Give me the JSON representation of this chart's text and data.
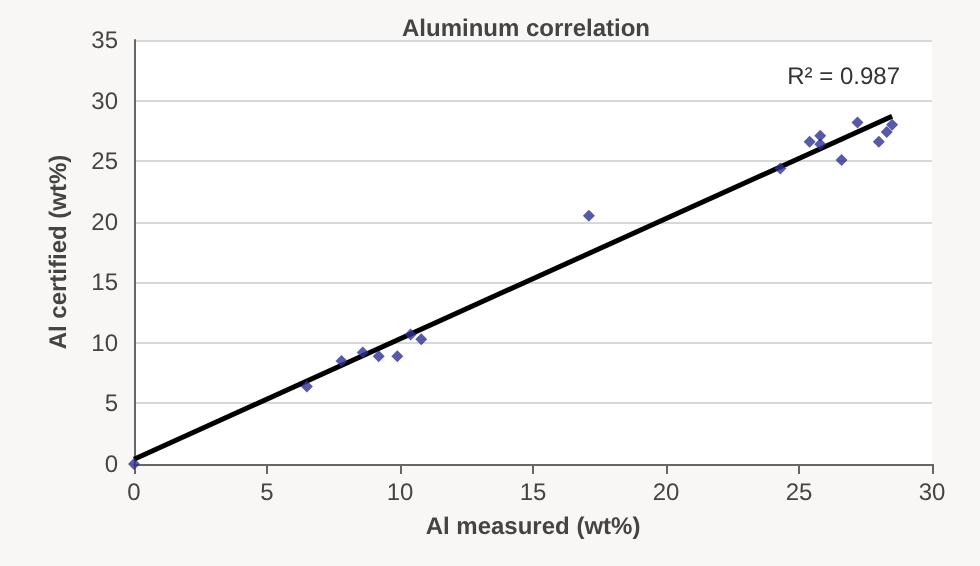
{
  "chart_data": {
    "type": "scatter",
    "title": "Aluminum correlation",
    "xlabel": "Al measured (wt%)",
    "ylabel": "Al certified (wt%)",
    "xlim": [
      0,
      30
    ],
    "xticks": [
      0,
      5,
      10,
      15,
      20,
      25,
      30
    ],
    "ylim": [
      0,
      35
    ],
    "yticks": [
      0,
      5,
      10,
      15,
      20,
      25,
      30,
      35
    ],
    "grid": "y",
    "marker": "diamond",
    "annotations": [
      "R² = 0.987"
    ],
    "series": [
      {
        "color": "#2e3192",
        "x": [
          0,
          6.5,
          7.8,
          8.6,
          9.2,
          9.9,
          10.4,
          10.8,
          17.1,
          24.3,
          25.4,
          25.8,
          25.8,
          26.6,
          27.2,
          28,
          28.3,
          28.5
        ],
        "values": [
          0,
          6.4,
          8.5,
          9.2,
          8.9,
          8.9,
          10.7,
          10.3,
          20.5,
          24.4,
          26.6,
          27.1,
          26.4,
          25.1,
          28.2,
          26.6,
          27.4,
          28
        ]
      },
      {
        "type": "line",
        "color": "#000000",
        "marker": "none",
        "line_style": "solid",
        "x": [
          0,
          28.5
        ],
        "values": [
          0.4,
          28.7
        ]
      }
    ]
  }
}
